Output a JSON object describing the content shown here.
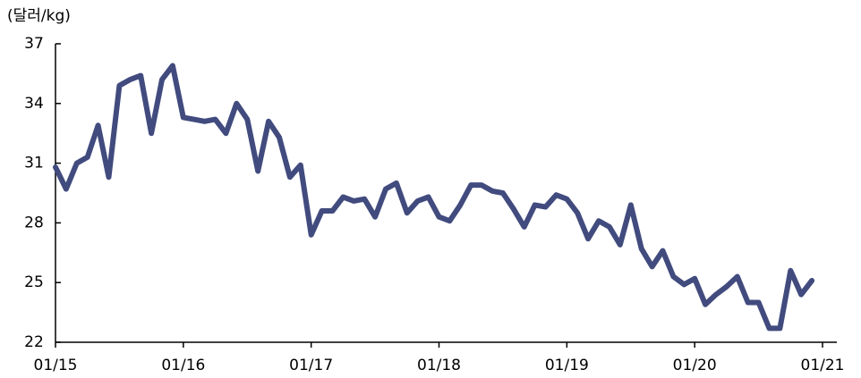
{
  "chart_data": {
    "type": "line",
    "y_label": "(달러/kg)",
    "x": [
      "01/15",
      "02/15",
      "03/15",
      "04/15",
      "05/15",
      "06/15",
      "07/15",
      "08/15",
      "09/15",
      "10/15",
      "11/15",
      "12/15",
      "01/16",
      "02/16",
      "03/16",
      "04/16",
      "05/16",
      "06/16",
      "07/16",
      "08/16",
      "09/16",
      "10/16",
      "11/16",
      "12/16",
      "01/17",
      "02/17",
      "03/17",
      "04/17",
      "05/17",
      "06/17",
      "07/17",
      "08/17",
      "09/17",
      "10/17",
      "11/17",
      "12/17",
      "01/18",
      "02/18",
      "03/18",
      "04/18",
      "05/18",
      "06/18",
      "07/18",
      "08/18",
      "09/18",
      "10/18",
      "11/18",
      "12/18",
      "01/19",
      "02/19",
      "03/19",
      "04/19",
      "05/19",
      "06/19",
      "07/19",
      "08/19",
      "09/19",
      "10/19",
      "11/19",
      "12/19",
      "01/20",
      "02/20",
      "03/20",
      "04/20",
      "05/20",
      "06/20",
      "07/20",
      "08/20",
      "09/20",
      "10/20",
      "11/20",
      "12/20"
    ],
    "series": [
      {
        "color": "#414b7e",
        "values": [
          30.8,
          29.7,
          31,
          31.3,
          32.9,
          30.3,
          34.9,
          35.2,
          35.4,
          32.5,
          35.2,
          35.9,
          33.3,
          33.2,
          33.1,
          33.2,
          32.5,
          34,
          33.2,
          30.6,
          33.1,
          32.3,
          30.3,
          30.9,
          27.4,
          28.6,
          28.6,
          29.3,
          29.1,
          29.2,
          28.3,
          29.7,
          30,
          28.5,
          29.1,
          29.3,
          28.3,
          28.1,
          28.9,
          29.9,
          29.9,
          29.6,
          29.5,
          28.7,
          27.8,
          28.9,
          28.8,
          29.4,
          29.2,
          28.5,
          27.2,
          28.1,
          27.8,
          26.9,
          28.9,
          26.7,
          25.8,
          26.6,
          25.3,
          24.9,
          25.2,
          23.9,
          24.4,
          24.8,
          25.3,
          24,
          24,
          22.7,
          22.7,
          25.6,
          24.4,
          25.1
        ]
      }
    ],
    "xlim": [
      "01/15",
      "01/21"
    ],
    "xticks": [
      "01/15",
      "01/16",
      "01/17",
      "01/18",
      "01/19",
      "01/20",
      "01/21"
    ],
    "ylim": [
      22,
      37
    ],
    "yticks": [
      22,
      25,
      28,
      31,
      34,
      37
    ],
    "grid": false
  }
}
